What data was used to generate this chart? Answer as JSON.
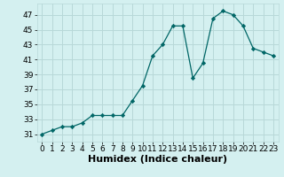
{
  "x": [
    0,
    1,
    2,
    3,
    4,
    5,
    6,
    7,
    8,
    9,
    10,
    11,
    12,
    13,
    14,
    15,
    16,
    17,
    18,
    19,
    20,
    21,
    22,
    23
  ],
  "y": [
    31,
    31.5,
    32,
    32,
    32.5,
    33.5,
    33.5,
    33.5,
    33.5,
    35.5,
    37.5,
    41.5,
    43,
    45.5,
    45.5,
    38.5,
    40.5,
    46.5,
    47.5,
    47,
    45.5,
    42.5,
    42,
    41.5
  ],
  "line_color": "#006666",
  "marker": "D",
  "marker_size": 2.2,
  "background_color": "#d4f0f0",
  "grid_color": "#b8d8d8",
  "xlabel": "Humidex (Indice chaleur)",
  "xlabel_fontsize": 8,
  "tick_fontsize": 6.5,
  "xlim": [
    -0.5,
    23.5
  ],
  "ylim": [
    30,
    48.5
  ],
  "yticks": [
    31,
    33,
    35,
    37,
    39,
    41,
    43,
    45,
    47
  ],
  "xticks": [
    0,
    1,
    2,
    3,
    4,
    5,
    6,
    7,
    8,
    9,
    10,
    11,
    12,
    13,
    14,
    15,
    16,
    17,
    18,
    19,
    20,
    21,
    22,
    23
  ]
}
